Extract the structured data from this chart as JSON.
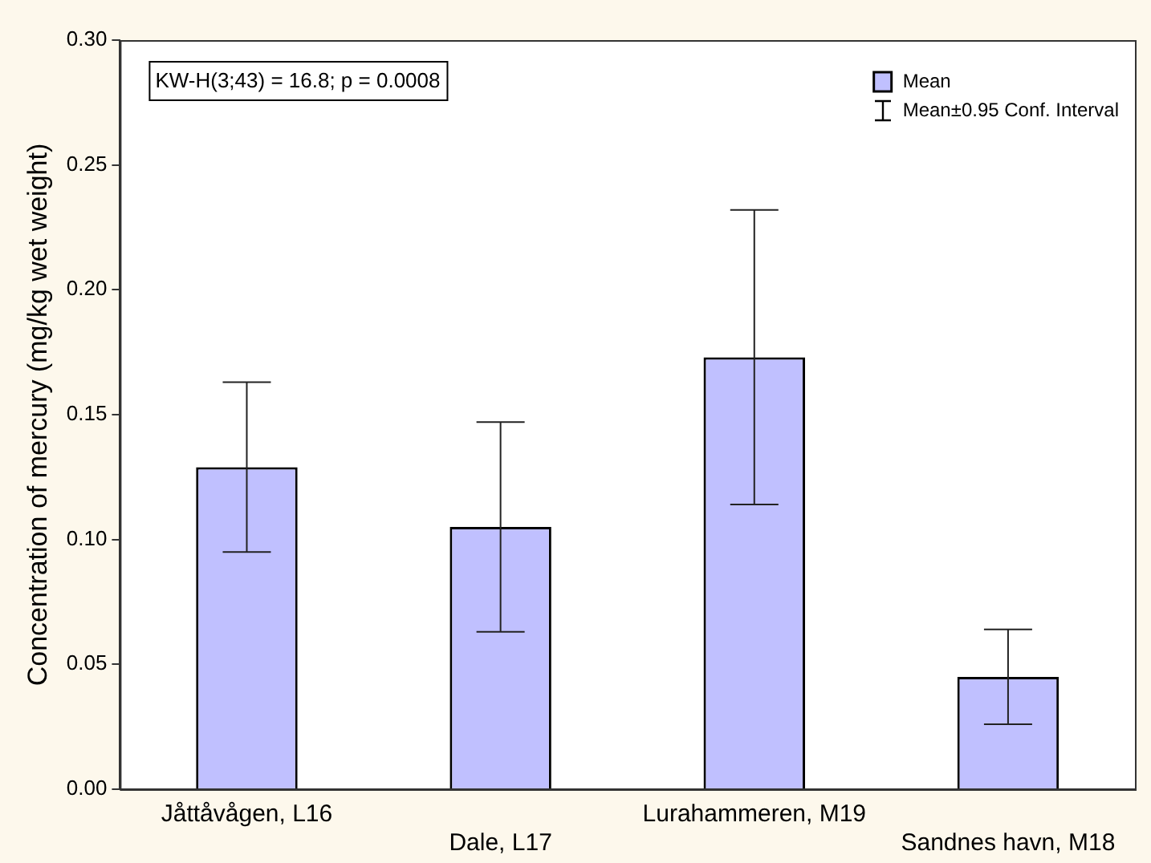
{
  "chart_data": {
    "type": "bar",
    "ylabel": "Concentration of mercury (mg/kg wet weight)",
    "categories": [
      "Jåttåvågen, L16",
      "Dale, L17",
      "Lurahammeren, M19",
      "Sandnes havn, M18"
    ],
    "series": [
      {
        "name": "Mean",
        "color": "#c0c0ff",
        "values": [
          0.129,
          0.105,
          0.173,
          0.045
        ],
        "errors": [
          0.034,
          0.042,
          0.059,
          0.019
        ]
      }
    ],
    "ylim": [
      0,
      0.3
    ],
    "yticks": [
      {
        "value": 0,
        "label": "0.00"
      },
      {
        "value": 0.05,
        "label": "0.05"
      },
      {
        "value": 0.1,
        "label": "0.10"
      },
      {
        "value": 0.15,
        "label": "0.15"
      },
      {
        "value": 0.2,
        "label": "0.20"
      },
      {
        "value": 0.25,
        "label": "0.25"
      },
      {
        "value": 0.3,
        "label": "0.30"
      }
    ],
    "annotations": [
      "KW-H(3;43) = 16.8; p = 0.0008",
      "Mean±0.95 Conf. Interval"
    ],
    "grid": false,
    "legend": "top right"
  }
}
